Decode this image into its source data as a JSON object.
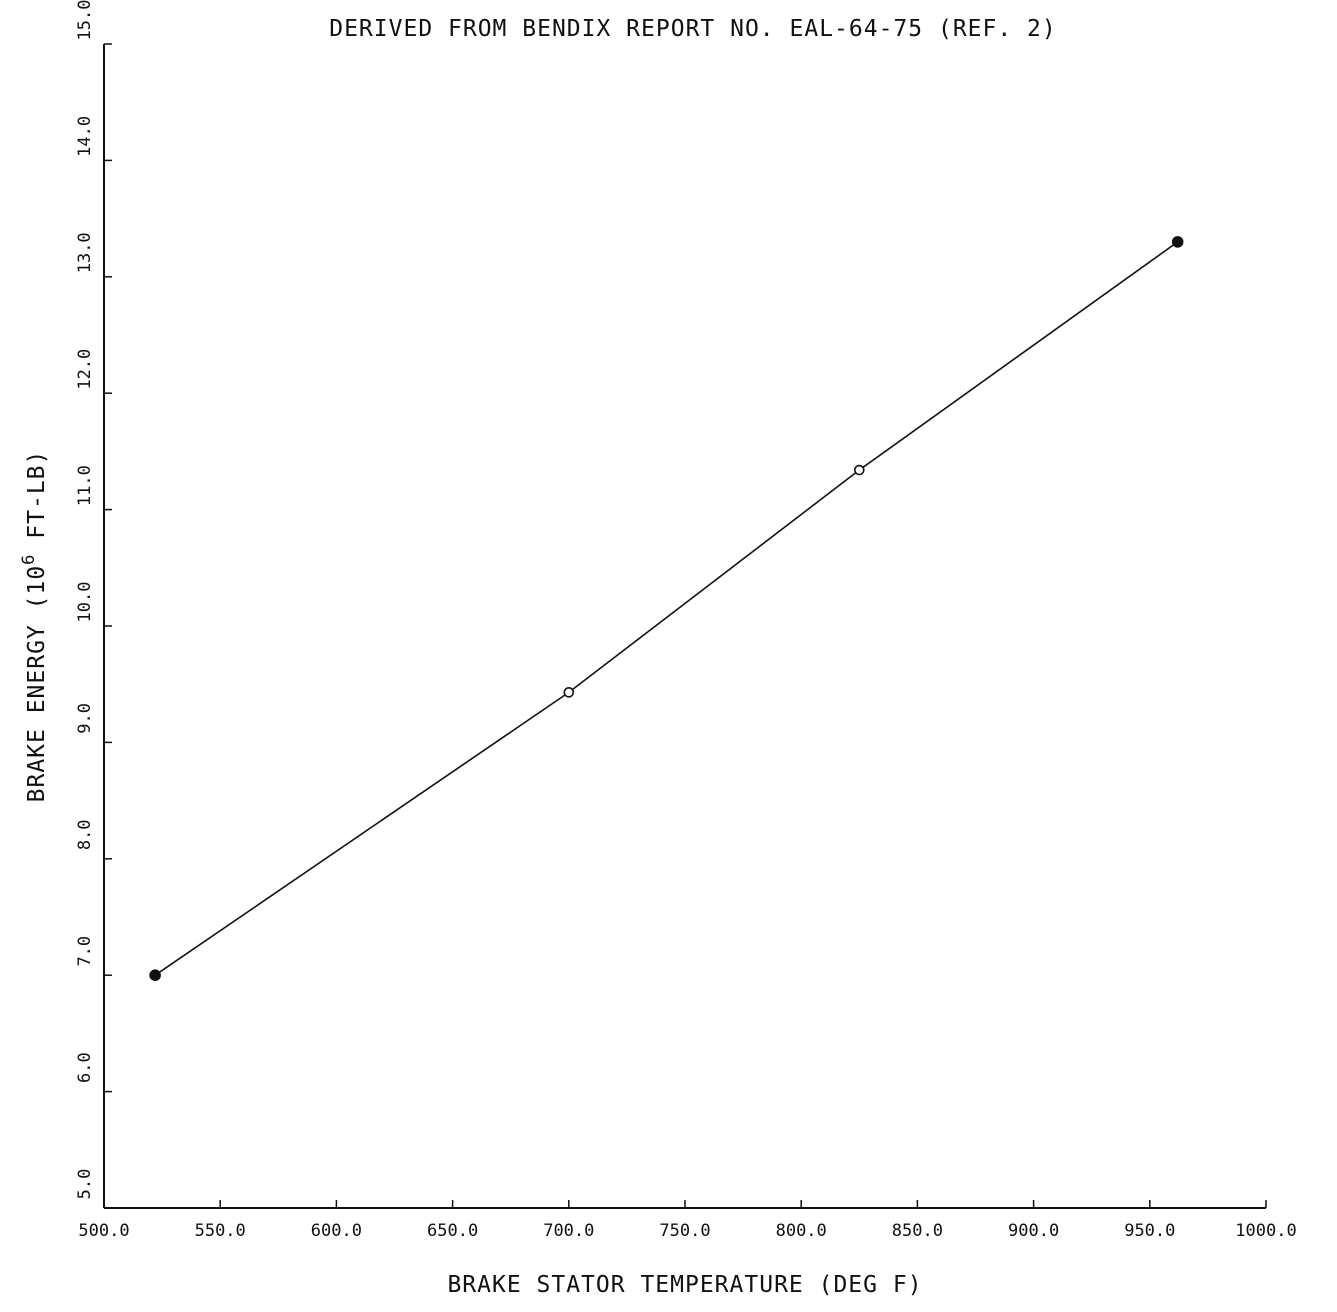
{
  "chart_data": {
    "type": "line",
    "title": "DERIVED FROM BENDIX REPORT NO. EAL-64-75 (REF. 2)",
    "xlabel": "BRAKE STATOR TEMPERATURE (DEG F)",
    "ylabel_prefix": "BRAKE ENERGY (10",
    "ylabel_exp": "6",
    "ylabel_suffix": " FT-LB)",
    "xlim": [
      500,
      1000
    ],
    "ylim": [
      5,
      15
    ],
    "x_ticks": [
      500,
      550,
      600,
      650,
      700,
      750,
      800,
      850,
      900,
      950,
      1000
    ],
    "x_tick_labels": [
      "500.0",
      "550.0",
      "600.0",
      "650.0",
      "700.0",
      "750.0",
      "800.0",
      "850.0",
      "900.0",
      "950.0",
      "1000.0"
    ],
    "y_ticks": [
      5,
      6,
      7,
      8,
      9,
      10,
      11,
      12,
      13,
      14,
      15
    ],
    "y_tick_labels": [
      "5.0",
      "6.0",
      "7.0",
      "8.0",
      "9.0",
      "10.0",
      "11.0",
      "12.0",
      "13.0",
      "14.0",
      "15.0"
    ],
    "grid": false,
    "series": [
      {
        "x": [
          522,
          700,
          825,
          962
        ],
        "y": [
          7.0,
          9.43,
          11.34,
          13.3
        ],
        "markers": [
          "filled",
          "open",
          "open",
          "filled"
        ]
      }
    ],
    "colors": {
      "line": "#111111",
      "text": "#111111"
    }
  }
}
